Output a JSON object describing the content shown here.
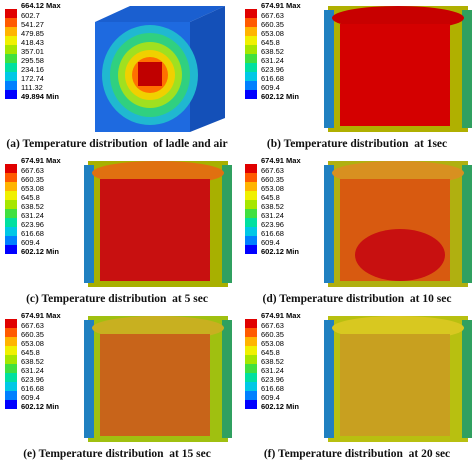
{
  "panels": [
    {
      "legend": [
        "664.12 Max",
        "602.7",
        "541.27",
        "479.85",
        "418.43",
        "357.01",
        "295.58",
        "234.16",
        "172.74",
        "111.32",
        "49.894 Min"
      ],
      "caption": "(a) Temperature distribution  of ladle and air"
    },
    {
      "legend": [
        "674.91 Max",
        "667.63",
        "660.35",
        "653.08",
        "645.8",
        "638.52",
        "631.24",
        "623.96",
        "616.68",
        "609.4",
        "602.12 Min"
      ],
      "caption": "(b) Temperature distribution  at 1sec"
    },
    {
      "legend": [
        "674.91 Max",
        "667.63",
        "660.35",
        "653.08",
        "645.8",
        "638.52",
        "631.24",
        "623.96",
        "616.68",
        "609.4",
        "602.12 Min"
      ],
      "caption": "(c) Temperature distribution  at 5 sec"
    },
    {
      "legend": [
        "674.91 Max",
        "667.63",
        "660.35",
        "653.08",
        "645.8",
        "638.52",
        "631.24",
        "623.96",
        "616.68",
        "609.4",
        "602.12 Min"
      ],
      "caption": "(d) Temperature distribution  at 10 sec"
    },
    {
      "legend": [
        "674.91 Max",
        "667.63",
        "660.35",
        "653.08",
        "645.8",
        "638.52",
        "631.24",
        "623.96",
        "616.68",
        "609.4",
        "602.12 Min"
      ],
      "caption": "(e) Temperature distribution  at 15 sec"
    },
    {
      "legend": [
        "674.91 Max",
        "667.63",
        "660.35",
        "653.08",
        "645.8",
        "638.52",
        "631.24",
        "623.96",
        "616.68",
        "609.4",
        "602.12 Min"
      ],
      "caption": "(f) Temperature distribution  at 20 sec"
    }
  ]
}
